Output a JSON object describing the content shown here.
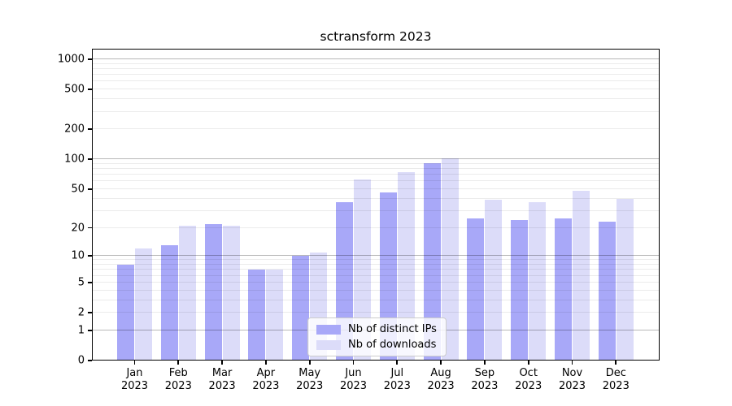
{
  "title": "sctransform 2023",
  "chart_data": {
    "type": "bar",
    "title": "sctransform 2023",
    "categories": [
      "Jan 2023",
      "Feb 2023",
      "Mar 2023",
      "Apr 2023",
      "May 2023",
      "Jun 2023",
      "Jul 2023",
      "Aug 2023",
      "Sep 2023",
      "Oct 2023",
      "Nov 2023",
      "Dec 2023"
    ],
    "series": [
      {
        "name": "Nb of distinct IPs",
        "slug": "distinct-ips",
        "color": "#a8a8f8",
        "values": [
          8,
          13,
          22,
          7,
          10,
          37,
          46,
          91,
          25,
          24,
          25,
          23
        ]
      },
      {
        "name": "Nb of downloads",
        "slug": "downloads",
        "color": "#dcdcf9",
        "values": [
          12,
          21,
          21,
          7,
          11,
          63,
          74,
          102,
          39,
          37,
          48,
          40
        ]
      }
    ],
    "y_scale": "log1p",
    "y_ticks": [
      0,
      1,
      2,
      5,
      10,
      20,
      50,
      100,
      200,
      500,
      1000
    ],
    "ylim": [
      0,
      1280
    ],
    "xlabel": "",
    "ylabel": "",
    "grid": true,
    "legend_position": "lower center",
    "background_color": "#ffffff",
    "axis_color": "#000000"
  }
}
